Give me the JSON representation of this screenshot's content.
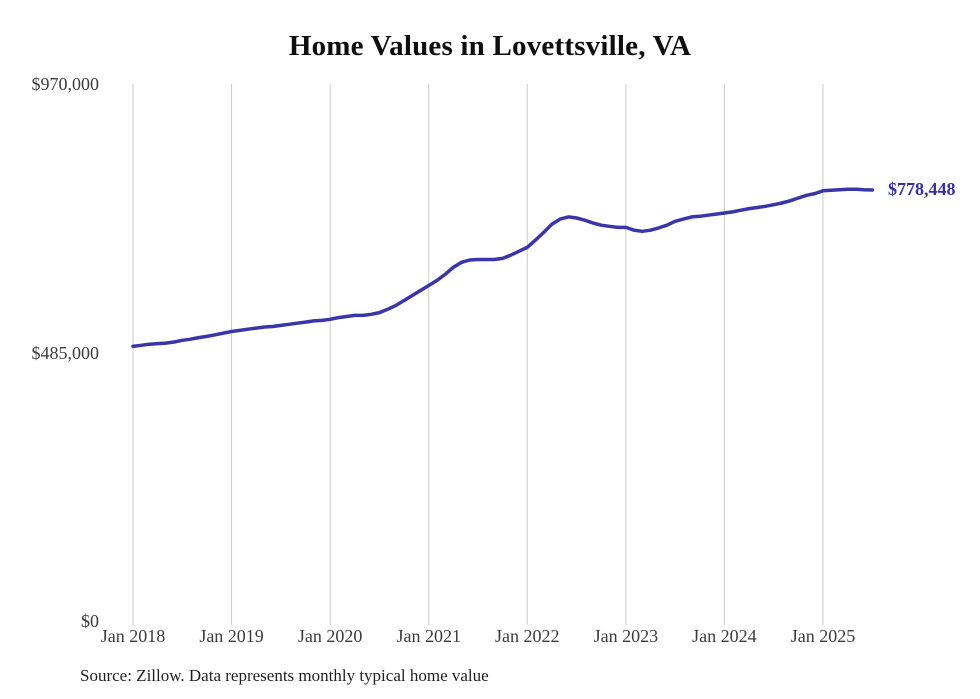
{
  "title": "Home Values in Lovettsville, VA",
  "source_note": "Source: Zillow. Data represents monthly typical home value",
  "end_label": "$778,448",
  "colors": {
    "line": "#3a35a8",
    "end_label": "#3430a4",
    "gridline": "#cbcbcb",
    "title": "#0e0e0e",
    "axis_label": "#3c3c3c",
    "source": "#1f1f1f",
    "background": "#ffffff"
  },
  "chart_data": {
    "type": "line",
    "title": "Home Values in Lovettsville, VA",
    "xlabel": "",
    "ylabel": "",
    "x_start": "2018-01",
    "x_end": "2025-07",
    "frequency": "monthly",
    "x_tick_labels": [
      "Jan 2018",
      "Jan 2019",
      "Jan 2020",
      "Jan 2021",
      "Jan 2022",
      "Jan 2023",
      "Jan 2024",
      "Jan 2025"
    ],
    "y_tick_labels": [
      "$0",
      "$485,000",
      "$970,000"
    ],
    "y_ticks": [
      0,
      485000,
      970000
    ],
    "ylim": [
      0,
      970000
    ],
    "grid": "vertical-only",
    "legend": "none",
    "final_value": 778448,
    "final_value_label": "$778,448",
    "series": [
      {
        "name": "Typical home value",
        "unit": "USD",
        "values": [
          496000,
          498000,
          500000,
          501000,
          502000,
          504000,
          507000,
          509000,
          512000,
          514000,
          517000,
          520000,
          523000,
          525000,
          527000,
          529000,
          531000,
          532000,
          534000,
          536000,
          538000,
          540000,
          542000,
          543000,
          545000,
          548000,
          550000,
          552000,
          552000,
          554000,
          557000,
          563000,
          570000,
          579000,
          588000,
          597000,
          606000,
          615000,
          626000,
          639000,
          648000,
          652000,
          653000,
          653000,
          653000,
          655000,
          661000,
          668000,
          675000,
          688000,
          702000,
          717000,
          726000,
          730000,
          728000,
          724000,
          719000,
          715000,
          713000,
          711000,
          711000,
          706000,
          704000,
          706000,
          710000,
          715000,
          722000,
          726000,
          730000,
          731000,
          733000,
          735000,
          737000,
          739000,
          742000,
          745000,
          747000,
          749000,
          752000,
          755000,
          759000,
          764000,
          769000,
          772000,
          777000,
          778000,
          779000,
          780000,
          780000,
          779000,
          778448
        ]
      }
    ]
  }
}
